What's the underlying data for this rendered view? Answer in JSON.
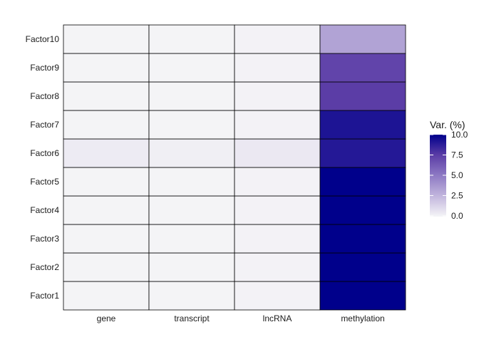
{
  "chart_data": {
    "type": "heatmap",
    "title": "",
    "xlabel": "",
    "ylabel": "",
    "x_categories": [
      "gene",
      "transcript",
      "lncRNA",
      "methylation"
    ],
    "y_categories": [
      "Factor1",
      "Factor2",
      "Factor3",
      "Factor4",
      "Factor5",
      "Factor6",
      "Factor7",
      "Factor8",
      "Factor9",
      "Factor10"
    ],
    "values": [
      [
        0.05,
        0.05,
        0.1,
        10
      ],
      [
        0.05,
        0.05,
        0.1,
        10
      ],
      [
        0.05,
        0.05,
        0.1,
        10
      ],
      [
        0.05,
        0.05,
        0.1,
        10
      ],
      [
        0.05,
        0.05,
        0.1,
        10
      ],
      [
        0.4,
        0.25,
        0.5,
        9.0
      ],
      [
        0.05,
        0.05,
        0.1,
        9.2
      ],
      [
        0.05,
        0.05,
        0.1,
        7.5
      ],
      [
        0.05,
        0.05,
        0.1,
        7.2
      ],
      [
        0.05,
        0.05,
        0.1,
        3.3
      ]
    ],
    "legend": {
      "title": "Var. (%)",
      "position": "right",
      "range": [
        0,
        10
      ],
      "ticks": [
        "0.0",
        "2.5",
        "5.0",
        "7.5",
        "10.0"
      ],
      "colors": {
        "low": "#f5f5f7",
        "high": "#00008b"
      }
    },
    "grid": false
  }
}
